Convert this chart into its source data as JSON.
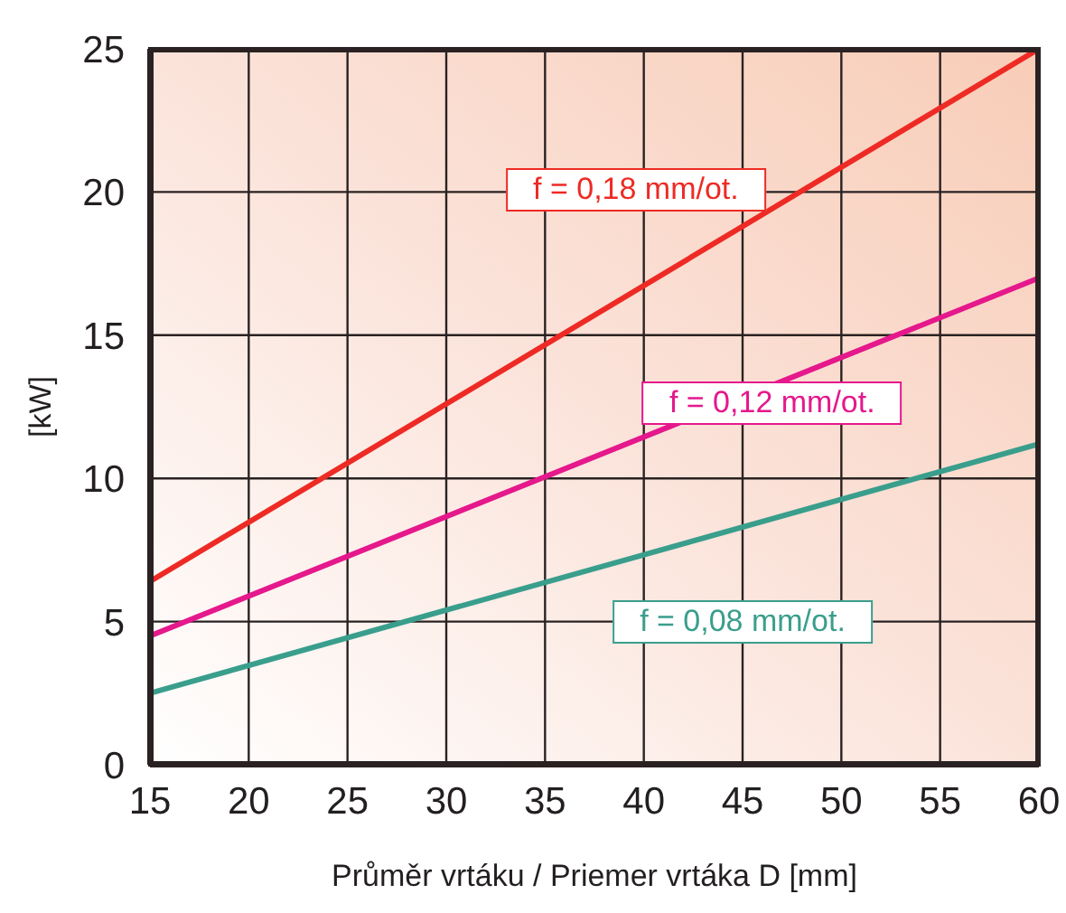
{
  "chart_data": {
    "type": "line",
    "xlabel": "Průměr vrtáku / Priemer vrtáka D [mm]",
    "ylabel": "[kW]",
    "x": [
      15,
      60
    ],
    "series": [
      {
        "name": "f = 0,18 mm/ot.",
        "color": "#ee2a24",
        "values": [
          6.4,
          25
        ]
      },
      {
        "name": "f = 0,12 mm/ot.",
        "color": "#e5188c",
        "values": [
          4.5,
          17
        ]
      },
      {
        "name": "f = 0,08 mm/ot.",
        "color": "#3a9e8c",
        "values": [
          2.5,
          11.2
        ]
      }
    ],
    "xlim": [
      15,
      60
    ],
    "xticks": [
      15,
      20,
      25,
      30,
      35,
      40,
      45,
      50,
      55,
      60
    ],
    "ylim": [
      0,
      25
    ],
    "yticks": [
      0,
      5,
      10,
      15,
      20,
      25
    ],
    "grid": true,
    "legend": false,
    "marker": "none",
    "line_style": "solid"
  }
}
